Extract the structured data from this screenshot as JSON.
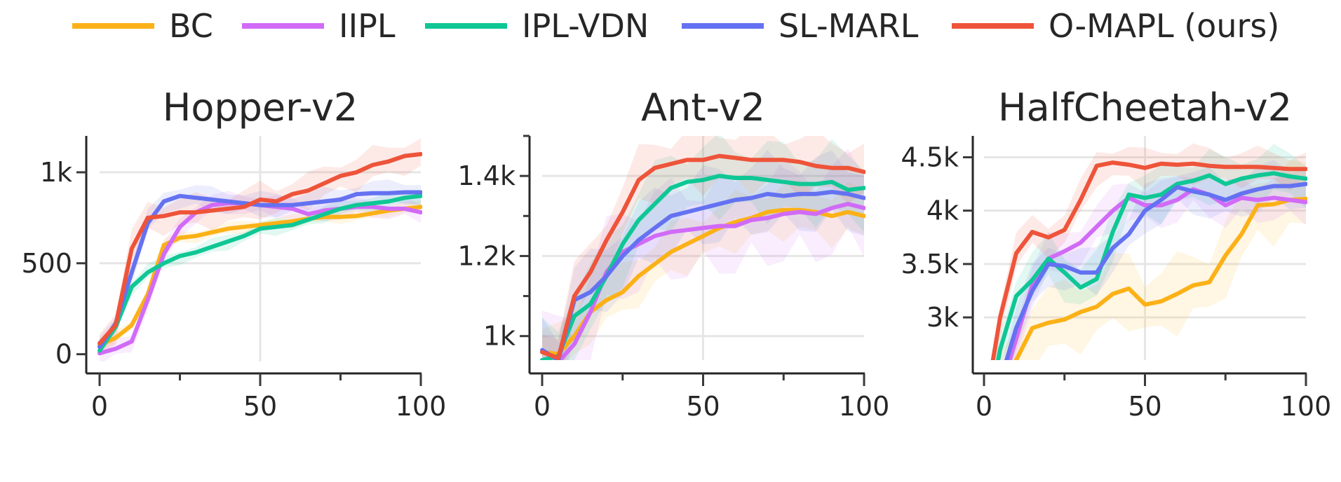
{
  "legend": [
    {
      "name": "BC",
      "color": "#FBB117"
    },
    {
      "name": "IIPL",
      "color": "#D16BF7"
    },
    {
      "name": "IPL-VDN",
      "color": "#0FC795"
    },
    {
      "name": "SL-MARL",
      "color": "#6472F1"
    },
    {
      "name": "O-MAPL (ours)",
      "color": "#EE543A"
    }
  ],
  "chart_data": [
    {
      "type": "line",
      "title": "Hopper-v2",
      "xlabel": "",
      "ylabel": "",
      "xlim": [
        0,
        100
      ],
      "ylim": [
        -40,
        1200
      ],
      "xticks": [
        0,
        25,
        50,
        75,
        100
      ],
      "xtick_labels": [
        "0",
        "",
        "50",
        "",
        "100"
      ],
      "yticks": [
        0,
        500,
        1000
      ],
      "ytick_labels": [
        "0",
        "500",
        "1k"
      ],
      "xgrid": [
        50
      ],
      "ygrid": [
        500,
        1000
      ],
      "grid": true,
      "legend": "top",
      "x": [
        0,
        5,
        10,
        15,
        20,
        25,
        30,
        35,
        40,
        45,
        50,
        55,
        60,
        65,
        70,
        75,
        80,
        85,
        90,
        95,
        100
      ],
      "series": [
        {
          "name": "BC",
          "values": [
            50,
            90,
            160,
            330,
            600,
            640,
            650,
            670,
            690,
            700,
            710,
            720,
            730,
            745,
            755,
            755,
            760,
            775,
            790,
            800,
            810
          ],
          "band": 40
        },
        {
          "name": "IIPL",
          "values": [
            5,
            30,
            70,
            300,
            550,
            700,
            780,
            820,
            830,
            830,
            820,
            810,
            800,
            770,
            790,
            800,
            810,
            810,
            800,
            800,
            780
          ],
          "band": 70
        },
        {
          "name": "IPL-VDN",
          "values": [
            20,
            150,
            370,
            450,
            500,
            540,
            560,
            590,
            620,
            650,
            690,
            700,
            710,
            740,
            770,
            800,
            820,
            830,
            840,
            860,
            870
          ],
          "band": 50
        },
        {
          "name": "SL-MARL",
          "values": [
            40,
            170,
            450,
            720,
            840,
            870,
            860,
            850,
            840,
            830,
            820,
            820,
            820,
            830,
            840,
            850,
            880,
            885,
            885,
            890,
            890
          ],
          "band": 80
        },
        {
          "name": "O-MAPL (ours)",
          "values": [
            60,
            160,
            580,
            750,
            760,
            780,
            780,
            790,
            800,
            810,
            850,
            840,
            880,
            900,
            940,
            980,
            1000,
            1040,
            1060,
            1090,
            1100
          ],
          "band": 110
        }
      ]
    },
    {
      "type": "line",
      "title": "Ant-v2",
      "xlabel": "",
      "ylabel": "",
      "xlim": [
        0,
        100
      ],
      "ylim": [
        940,
        1500
      ],
      "xticks": [
        0,
        25,
        50,
        75,
        100
      ],
      "xtick_labels": [
        "0",
        "",
        "50",
        "",
        "100"
      ],
      "yticks": [
        1000,
        1100,
        1200,
        1300,
        1400,
        1500
      ],
      "ytick_labels": [
        "1k",
        "",
        "1.2k",
        "",
        "1.4k",
        ""
      ],
      "xgrid": [
        50
      ],
      "ygrid": [
        1000,
        1200,
        1400
      ],
      "grid": true,
      "legend": "top",
      "x": [
        0,
        5,
        10,
        15,
        20,
        25,
        30,
        35,
        40,
        45,
        50,
        55,
        60,
        65,
        70,
        75,
        80,
        85,
        90,
        95,
        100
      ],
      "series": [
        {
          "name": "BC",
          "values": [
            960,
            955,
            1000,
            1060,
            1090,
            1110,
            1150,
            1180,
            1210,
            1230,
            1250,
            1270,
            1285,
            1295,
            1310,
            1315,
            1315,
            1310,
            1300,
            1310,
            1300
          ],
          "band": 80
        },
        {
          "name": "IIPL",
          "values": [
            930,
            935,
            980,
            1060,
            1160,
            1210,
            1230,
            1250,
            1260,
            1265,
            1270,
            1275,
            1275,
            1290,
            1295,
            1305,
            1310,
            1305,
            1320,
            1330,
            1320
          ],
          "band": 140
        },
        {
          "name": "IPL-VDN",
          "values": [
            940,
            950,
            1050,
            1080,
            1150,
            1230,
            1290,
            1330,
            1370,
            1385,
            1390,
            1400,
            1395,
            1395,
            1390,
            1385,
            1380,
            1380,
            1385,
            1365,
            1370
          ],
          "band": 110
        },
        {
          "name": "SL-MARL",
          "values": [
            965,
            940,
            1090,
            1110,
            1150,
            1200,
            1240,
            1270,
            1300,
            1310,
            1320,
            1330,
            1340,
            1345,
            1355,
            1350,
            1355,
            1355,
            1360,
            1355,
            1345
          ],
          "band": 110
        },
        {
          "name": "O-MAPL (ours)",
          "values": [
            960,
            945,
            1100,
            1160,
            1240,
            1310,
            1390,
            1420,
            1430,
            1440,
            1440,
            1450,
            1445,
            1440,
            1440,
            1440,
            1435,
            1425,
            1420,
            1420,
            1410
          ],
          "band": 90
        }
      ]
    },
    {
      "type": "line",
      "title": "HalfCheetah-v2",
      "xlabel": "",
      "ylabel": "",
      "xlim": [
        0,
        100
      ],
      "ylim": [
        2600,
        4700
      ],
      "xticks": [
        0,
        25,
        50,
        75,
        100
      ],
      "xtick_labels": [
        "0",
        "",
        "50",
        "",
        "100"
      ],
      "yticks": [
        3000,
        3500,
        4000,
        4500
      ],
      "ytick_labels": [
        "3k",
        "3.5k",
        "4k",
        "4.5k"
      ],
      "xgrid": [
        50
      ],
      "ygrid": [
        3000,
        3500,
        4000,
        4500
      ],
      "grid": true,
      "legend": "top",
      "x": [
        0,
        5,
        10,
        15,
        20,
        25,
        30,
        35,
        40,
        45,
        50,
        55,
        60,
        65,
        70,
        75,
        80,
        85,
        90,
        95,
        100
      ],
      "series": [
        {
          "name": "BC",
          "values": [
            2000,
            2300,
            2600,
            2900,
            2950,
            2980,
            3050,
            3100,
            3220,
            3270,
            3120,
            3150,
            3220,
            3300,
            3330,
            3580,
            3780,
            4050,
            4060,
            4100,
            4110
          ],
          "band": 400
        },
        {
          "name": "IIPL",
          "values": [
            1800,
            2300,
            2800,
            3300,
            3550,
            3620,
            3700,
            3850,
            4000,
            4120,
            4050,
            4050,
            4100,
            4200,
            4150,
            4050,
            4120,
            4100,
            4120,
            4100,
            4080
          ],
          "band": 250
        },
        {
          "name": "IPL-VDN",
          "values": [
            1900,
            2700,
            3200,
            3350,
            3550,
            3420,
            3280,
            3360,
            3800,
            4150,
            4120,
            4150,
            4250,
            4280,
            4330,
            4250,
            4300,
            4330,
            4350,
            4320,
            4300
          ],
          "band": 280
        },
        {
          "name": "SL-MARL",
          "values": [
            1800,
            2400,
            2900,
            3250,
            3500,
            3480,
            3420,
            3420,
            3650,
            3780,
            4000,
            4100,
            4220,
            4180,
            4150,
            4100,
            4160,
            4200,
            4230,
            4230,
            4250
          ],
          "band": 260
        },
        {
          "name": "O-MAPL (ours)",
          "values": [
            2100,
            3000,
            3600,
            3800,
            3750,
            3820,
            4100,
            4420,
            4450,
            4430,
            4400,
            4440,
            4430,
            4440,
            4420,
            4410,
            4410,
            4410,
            4400,
            4390,
            4390
          ],
          "band": 200
        }
      ]
    }
  ]
}
